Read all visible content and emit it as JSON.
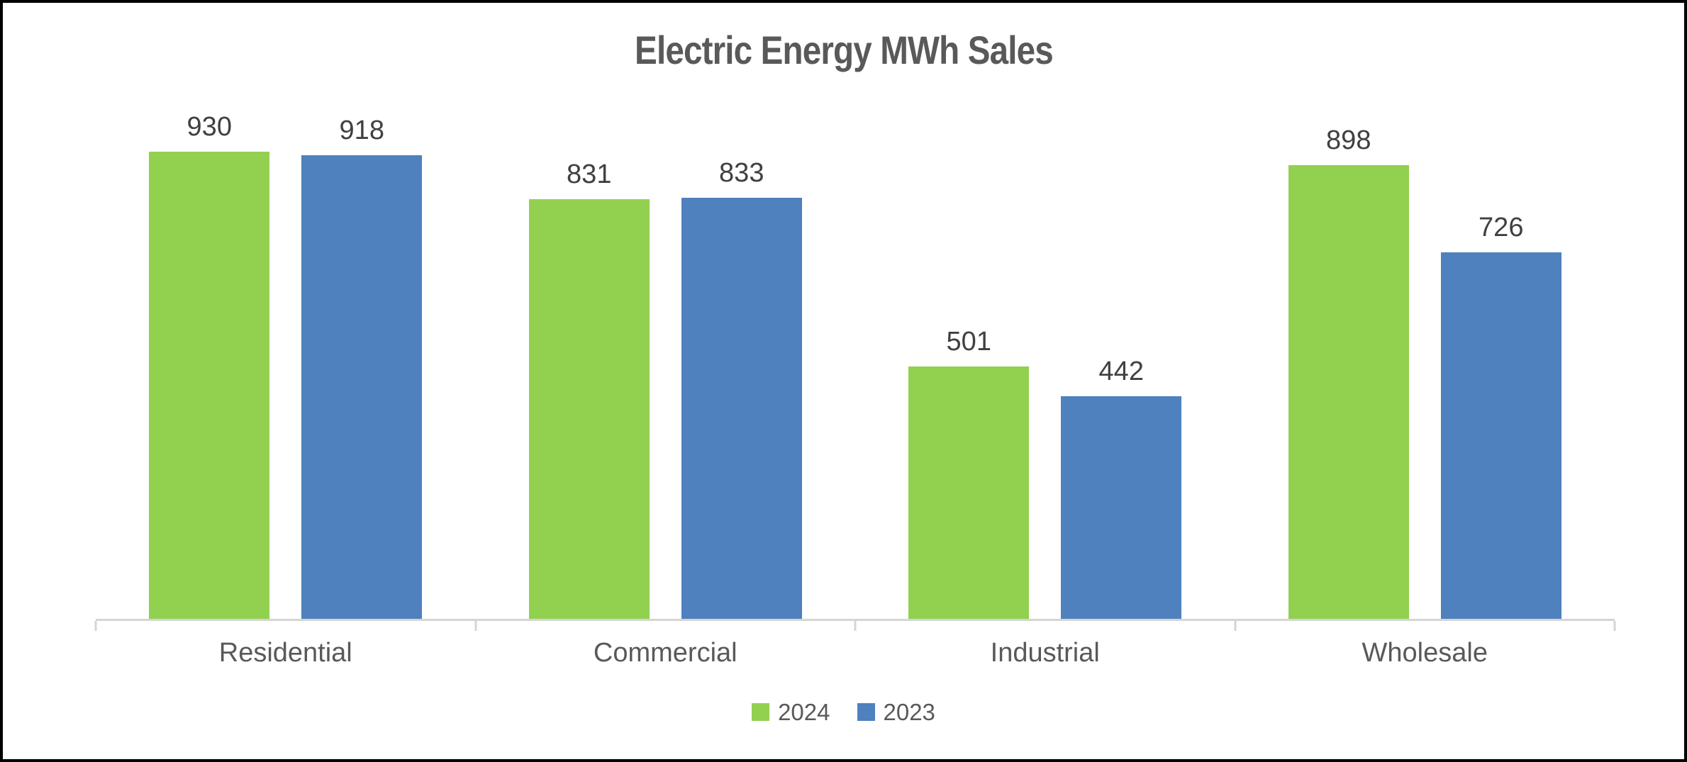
{
  "chart_data": {
    "type": "bar",
    "title": "Electric Energy MWh Sales",
    "categories": [
      "Residential",
      "Commercial",
      "Industrial",
      "Wholesale"
    ],
    "series": [
      {
        "name": "2024",
        "color": "#92D050",
        "values": [
          930,
          831,
          501,
          898
        ]
      },
      {
        "name": "2023",
        "color": "#4E81BD",
        "values": [
          918,
          833,
          442,
          726
        ]
      }
    ],
    "ylim": [
      0,
      1000
    ],
    "data_labels": true,
    "grid": false,
    "y_axis_visible": false,
    "legend_position": "bottom",
    "x_axis_line_color": "#d5d5d5"
  },
  "styles": {
    "title_color": "#595959",
    "data_label_color": "#404040",
    "category_label_color": "#595959",
    "legend_text_color": "#595959",
    "background": "#FFFFFF",
    "frame_border_color": "#000000"
  }
}
